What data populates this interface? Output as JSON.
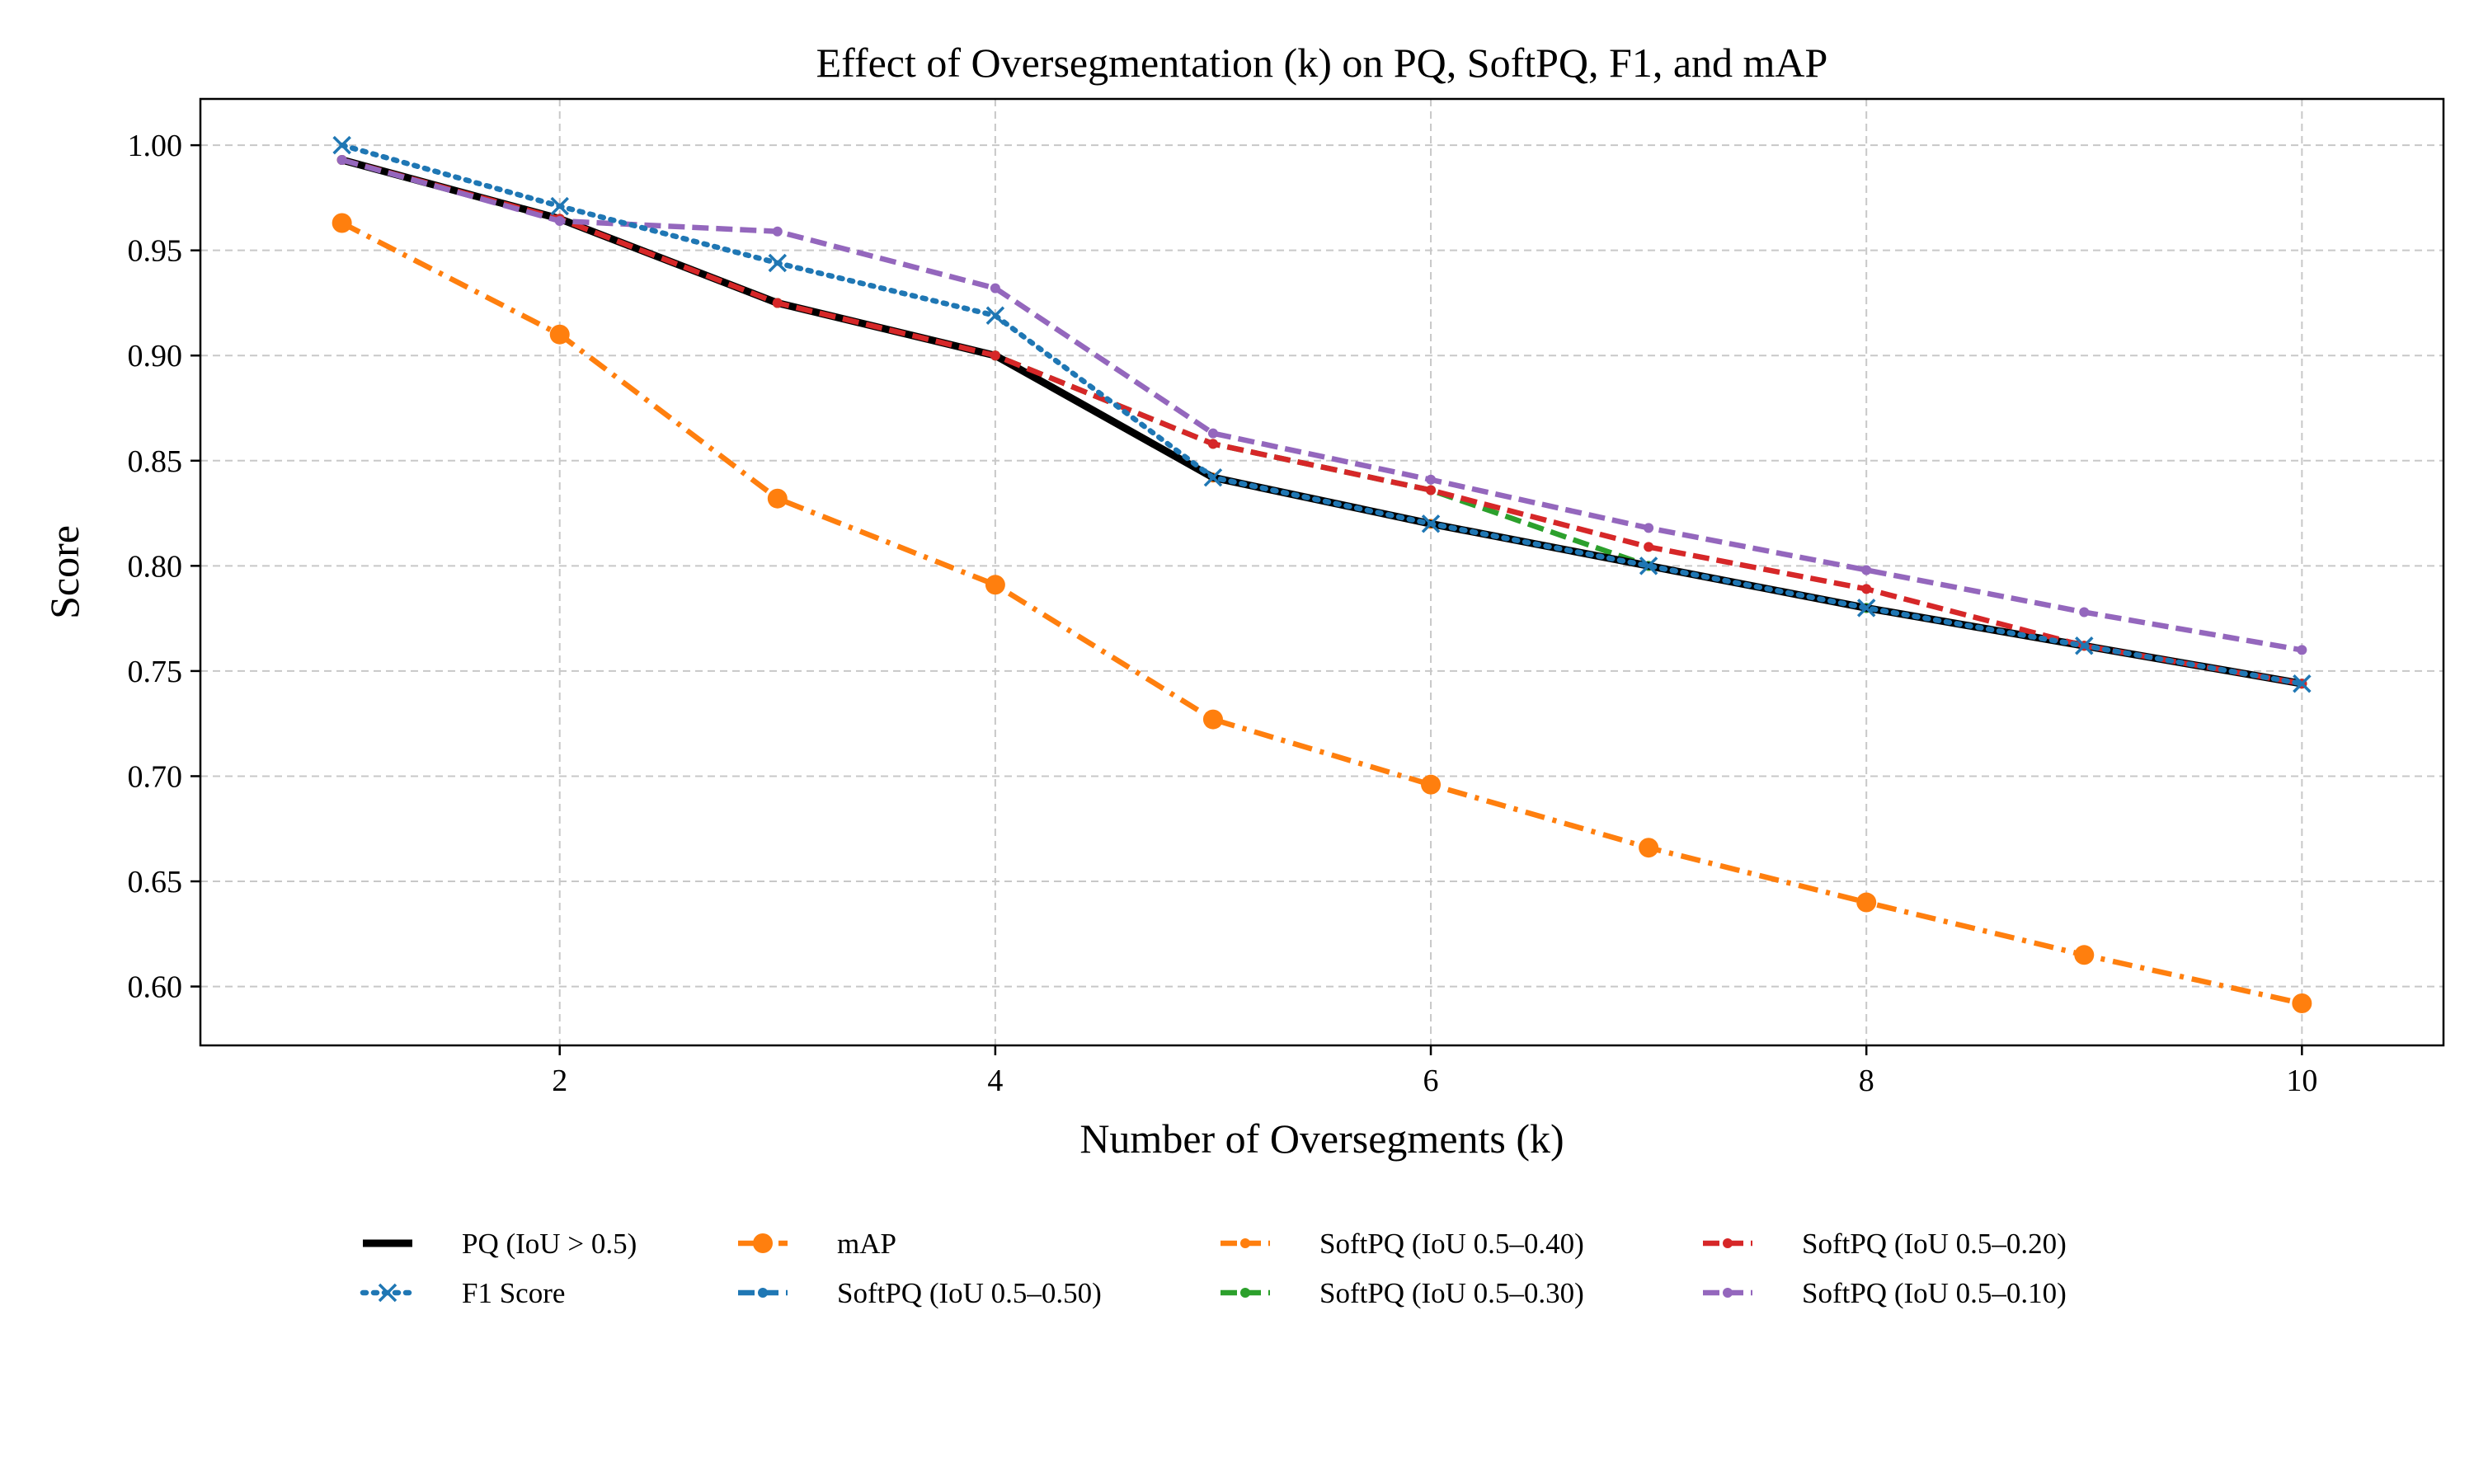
{
  "chart_data": {
    "type": "line",
    "title": "Effect of Oversegmentation (k) on PQ, SoftPQ, F1, and mAP",
    "xlabel": "Number of Oversegments (k)",
    "ylabel": "Score",
    "x": [
      1,
      2,
      3,
      4,
      5,
      6,
      7,
      8,
      9,
      10
    ],
    "xlim": [
      0.35,
      10.65
    ],
    "ylim": [
      0.572,
      1.022
    ],
    "xticks": [
      2,
      4,
      6,
      8,
      10
    ],
    "xtick_labels": [
      "2",
      "4",
      "6",
      "8",
      "10"
    ],
    "yticks": [
      0.6,
      0.65,
      0.7,
      0.75,
      0.8,
      0.85,
      0.9,
      0.95,
      1.0
    ],
    "ytick_labels": [
      "0.60",
      "0.65",
      "0.70",
      "0.75",
      "0.80",
      "0.85",
      "0.90",
      "0.95",
      "1.00"
    ],
    "grid": true,
    "legend_position": "bottom, outside plot, 4 columns",
    "series": [
      {
        "name": "SoftPQ (IoU 0.5–0.50)",
        "color": "#1f77b4",
        "style": "dashed",
        "marker": "dot",
        "values": [
          0.993,
          0.965,
          0.925,
          0.9,
          0.842,
          0.82,
          0.8,
          0.78,
          0.762,
          0.744
        ]
      },
      {
        "name": "SoftPQ (IoU 0.5–0.40)",
        "color": "#ff7f0e",
        "style": "dashed",
        "marker": "dot",
        "values": [
          0.993,
          0.965,
          0.925,
          0.9,
          0.842,
          0.82,
          0.8,
          0.78,
          0.762,
          0.744
        ]
      },
      {
        "name": "SoftPQ (IoU 0.5–0.30)",
        "color": "#2ca02c",
        "style": "dashed",
        "marker": "dot",
        "values": [
          0.993,
          0.965,
          0.925,
          0.9,
          0.858,
          0.836,
          0.8,
          0.78,
          0.762,
          0.744
        ]
      },
      {
        "name": "PQ (IoU > 0.5)",
        "color": "#000000",
        "style": "solid",
        "marker": "none",
        "values": [
          0.993,
          0.965,
          0.925,
          0.9,
          0.842,
          0.82,
          0.8,
          0.78,
          0.762,
          0.744
        ]
      },
      {
        "name": "SoftPQ (IoU 0.5–0.20)",
        "color": "#d62728",
        "style": "dashed",
        "marker": "dot",
        "values": [
          0.993,
          0.965,
          0.925,
          0.9,
          0.858,
          0.836,
          0.809,
          0.789,
          0.762,
          0.744
        ]
      },
      {
        "name": "SoftPQ (IoU 0.5–0.10)",
        "color": "#9467bd",
        "style": "dashed",
        "marker": "dot",
        "values": [
          0.993,
          0.964,
          0.959,
          0.932,
          0.863,
          0.841,
          0.818,
          0.798,
          0.778,
          0.76
        ]
      },
      {
        "name": "F1 Score",
        "color": "#1f77b4",
        "style": "dotted",
        "marker": "x",
        "values": [
          1.0,
          0.971,
          0.944,
          0.919,
          0.842,
          0.82,
          0.8,
          0.78,
          0.762,
          0.744
        ]
      },
      {
        "name": "mAP",
        "color": "#ff7f0e",
        "style": "dashdot",
        "marker": "circle",
        "values": [
          0.963,
          0.91,
          0.832,
          0.791,
          0.727,
          0.696,
          0.666,
          0.64,
          0.615,
          0.592
        ]
      }
    ],
    "legend_order": [
      "PQ (IoU > 0.5)",
      "F1 Score",
      "mAP",
      "SoftPQ (IoU 0.5–0.50)",
      "SoftPQ (IoU 0.5–0.40)",
      "SoftPQ (IoU 0.5–0.30)",
      "SoftPQ (IoU 0.5–0.20)",
      "SoftPQ (IoU 0.5–0.10)"
    ]
  }
}
